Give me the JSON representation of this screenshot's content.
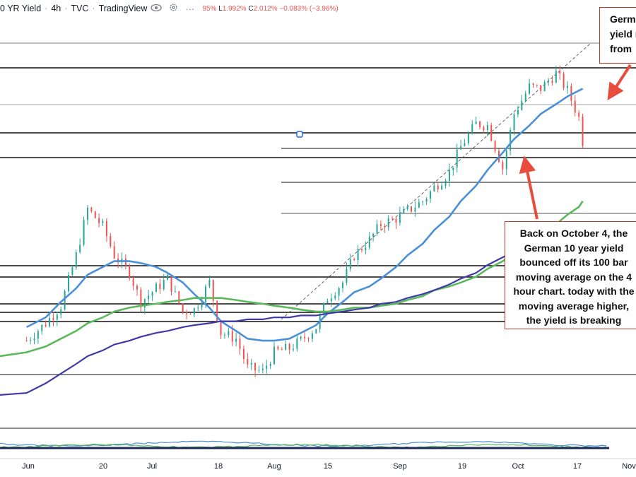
{
  "header": {
    "title": "0 YR Yield",
    "interval": "4h",
    "source": "TVC",
    "platform": "TradingView",
    "ohlc_partial": "95%",
    "low_label": "L",
    "low_value": "1.992%",
    "close_label": "C",
    "close_value": "2.012%",
    "change": "−0.083% (−3.96%)",
    "icons": [
      "eye-icon",
      "settings-icon",
      "more-icon"
    ]
  },
  "colors": {
    "bull": "#26a69a",
    "bear": "#ef5350",
    "ma100": "#4a90d9",
    "ma200": "#5cb85c",
    "ma_long": "#3f3aa8",
    "arrow": "#e74c3c",
    "callout_border": "#c0392b"
  },
  "callouts": {
    "top": "Germ\nyield r\nfrom",
    "bottom": "Back on October 4, the German 10 year yield bounced off its 100 bar moving average on the 4 hour chart.  today with the moving average higher, the yield is breaking lower..."
  },
  "chart_data": {
    "type": "candlestick",
    "x_axis_labels": [
      "Jun",
      "20",
      "Jul",
      "18",
      "Aug",
      "15",
      "Sep",
      "19",
      "Oct",
      "17",
      "Nov"
    ],
    "x": [
      "2022-06-01",
      "2022-06-06",
      "2022-06-10",
      "2022-06-14",
      "2022-06-17",
      "2022-06-21",
      "2022-06-24",
      "2022-06-28",
      "2022-07-01",
      "2022-07-05",
      "2022-07-08",
      "2022-07-12",
      "2022-07-15",
      "2022-07-19",
      "2022-07-22",
      "2022-07-26",
      "2022-07-29",
      "2022-08-02",
      "2022-08-05",
      "2022-08-09",
      "2022-08-12",
      "2022-08-16",
      "2022-08-19",
      "2022-08-23",
      "2022-08-26",
      "2022-08-30",
      "2022-09-02",
      "2022-09-06",
      "2022-09-09",
      "2022-09-13",
      "2022-09-16",
      "2022-09-20",
      "2022-09-23",
      "2022-09-27",
      "2022-09-30",
      "2022-10-04",
      "2022-10-07",
      "2022-10-11",
      "2022-10-14",
      "2022-10-18",
      "2022-10-21",
      "2022-10-24",
      "2022-10-25"
    ],
    "close": [
      0.98,
      1.07,
      1.16,
      1.42,
      1.66,
      1.57,
      1.42,
      1.33,
      1.18,
      1.25,
      1.3,
      1.13,
      1.14,
      1.28,
      1.02,
      0.99,
      0.84,
      0.82,
      0.92,
      0.94,
      0.98,
      1.05,
      1.2,
      1.28,
      1.42,
      1.5,
      1.58,
      1.61,
      1.65,
      1.7,
      1.77,
      1.85,
      1.98,
      2.1,
      2.09,
      1.87,
      2.15,
      2.29,
      2.28,
      2.36,
      2.27,
      2.13,
      2.01
    ],
    "series": [
      {
        "name": "",
        "role": "ma100",
        "values": [
          1.05,
          1.1,
          1.18,
          1.25,
          1.32,
          1.36,
          1.39,
          1.39,
          1.38,
          1.36,
          1.33,
          1.28,
          1.22,
          1.15,
          1.08,
          1.03,
          0.99,
          0.98,
          0.98,
          0.99,
          1.02,
          1.06,
          1.12,
          1.18,
          1.23,
          1.26,
          1.3,
          1.36,
          1.42,
          1.48,
          1.55,
          1.62,
          1.7,
          1.78,
          1.86,
          1.95,
          2.02,
          2.09,
          2.15,
          2.2,
          2.24,
          2.27,
          2.28
        ]
      },
      {
        "name": "",
        "role": "ma200",
        "values": [
          0.92,
          0.95,
          0.99,
          1.03,
          1.07,
          1.1,
          1.13,
          1.15,
          1.16,
          1.17,
          1.18,
          1.19,
          1.2,
          1.2,
          1.2,
          1.19,
          1.18,
          1.17,
          1.16,
          1.15,
          1.14,
          1.13,
          1.13,
          1.14,
          1.15,
          1.15,
          1.16,
          1.17,
          1.19,
          1.21,
          1.24,
          1.26,
          1.28,
          1.31,
          1.35,
          1.39,
          1.43,
          1.48,
          1.53,
          1.58,
          1.63,
          1.67,
          1.7
        ]
      },
      {
        "name": "",
        "role": "long-term ma",
        "values": [
          0.71,
          0.76,
          0.81,
          0.86,
          0.9,
          0.93,
          0.96,
          0.98,
          1.0,
          1.02,
          1.03,
          1.05,
          1.06,
          1.07,
          1.08,
          1.08,
          1.09,
          1.09,
          1.1,
          1.1,
          1.11,
          1.11,
          1.12,
          1.13,
          1.14,
          1.15,
          1.17,
          1.18,
          1.2,
          1.22,
          1.24,
          1.27,
          1.3,
          1.33,
          1.37,
          1.41,
          1.44,
          1.48,
          1.51,
          1.54,
          1.56,
          1.58,
          1.59
        ]
      }
    ],
    "ylim": [
      0.55,
      2.65
    ],
    "title": "",
    "xlabel": "",
    "ylabel": "",
    "grid": false,
    "annotations": [
      "top callout with arrow to latest price",
      "bottom callout with arrow to Oct 4 low"
    ]
  }
}
